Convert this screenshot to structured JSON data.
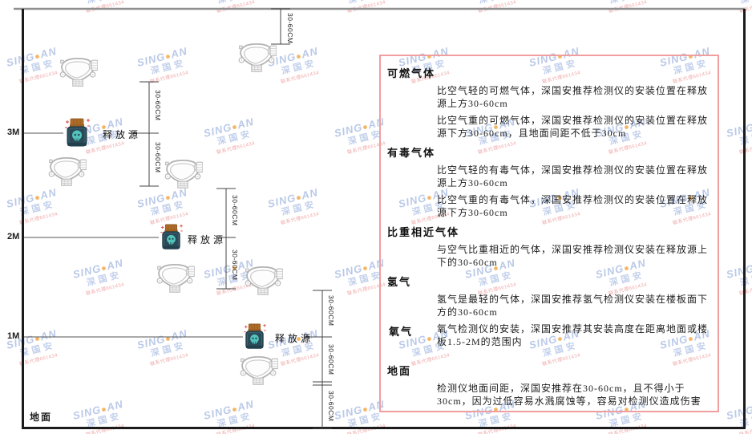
{
  "watermark": {
    "brand_left": "SING",
    "brand_dot": "●",
    "brand_right": "AN",
    "subtitle": "深国安",
    "contact": "联系代理661434",
    "brand_color": "#7694d2",
    "dot_color": "#f2a33c",
    "contact_color": "#e87676"
  },
  "diagram": {
    "levels": [
      {
        "label": "3M"
      },
      {
        "label": "2M"
      },
      {
        "label": "1M"
      }
    ],
    "ground_label": "地面",
    "source_label": "释放源",
    "dimension_label": "30-60CM",
    "source_colors": {
      "body": "#2b4a57",
      "cap": "#b06d28",
      "skull": "#52c4bb",
      "sparkle": "#e04545"
    },
    "detector_outline_color": "#b3b3b3",
    "line_color": "#444444"
  },
  "panel": {
    "border_color": "#f19e9e",
    "sections": [
      {
        "heading": "可燃气体",
        "paragraphs": [
          "比空气轻的可燃气体，深国安推荐检测仪的安装位置在释放源上方30-60cm",
          "比空气重的可燃气体，深国安推荐检测仪的安装位置在释放源下方30-60cm，且地面间距不低于30cm"
        ]
      },
      {
        "heading": "有毒气体",
        "paragraphs": [
          "比空气轻的有毒气体，深国安推荐检测仪的安装位置在释放源上方30-60cm",
          "比空气重的有毒气体，深国安推荐检测仪的安装位置在释放源下方30-60cm"
        ]
      },
      {
        "heading": "比重相近气体",
        "paragraphs": [
          "与空气比重相近的气体，深国安推荐检测仪安装在释放源上下的30-60cm"
        ]
      },
      {
        "heading": "氢气",
        "paragraphs": [
          "氢气是最轻的气体，深国安推荐氢气检测仪安装在楼板面下方的30-60cm"
        ]
      },
      {
        "heading": "氧气",
        "inline": true,
        "paragraphs": [
          "氧气检测仪的安装，深国安推荐其安装高度在距离地面或楼板1.5-2M的范围内"
        ]
      },
      {
        "heading": "地面",
        "gap": true,
        "paragraphs": [
          "检测仪地面间距，深国安推荐在30-60cm，且不得小于30cm，因为过低容易水溅腐蚀等，容易对检测仪造成伤害"
        ]
      }
    ]
  }
}
